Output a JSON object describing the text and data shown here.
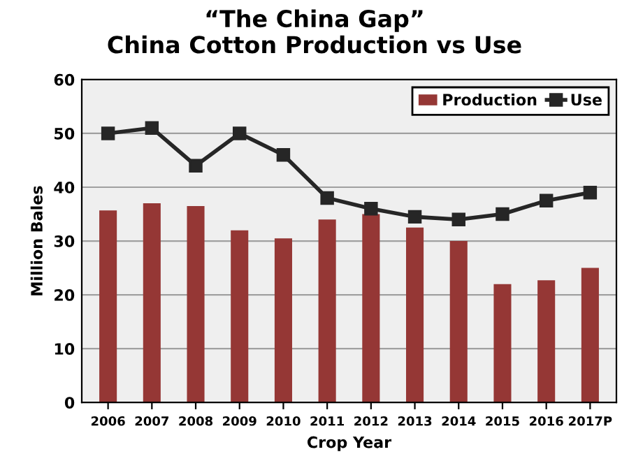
{
  "chart_data": {
    "type": "bar",
    "title": "“The China Gap”\nChina Cotton Production vs Use",
    "xlabel": "Crop Year",
    "ylabel": "Million Bales",
    "categories": [
      "2006",
      "2007",
      "2008",
      "2009",
      "2010",
      "2011",
      "2012",
      "2013",
      "2014",
      "2015",
      "2016",
      "2017P"
    ],
    "series": [
      {
        "name": "Production",
        "color": "#953735",
        "values": [
          35.7,
          37,
          36.5,
          32,
          30.5,
          34,
          35,
          32.5,
          30,
          22,
          22.7,
          25
        ]
      },
      {
        "name": "Use",
        "type": "line",
        "color": "#262626",
        "marker": "square",
        "values": [
          50,
          51,
          44,
          50,
          46,
          38,
          36,
          34.5,
          34,
          35,
          37.5,
          39
        ]
      }
    ],
    "ylim": [
      0,
      60
    ],
    "yticks": [
      0,
      10,
      20,
      30,
      40,
      50,
      60
    ],
    "grid": "y",
    "legend": "top right"
  }
}
